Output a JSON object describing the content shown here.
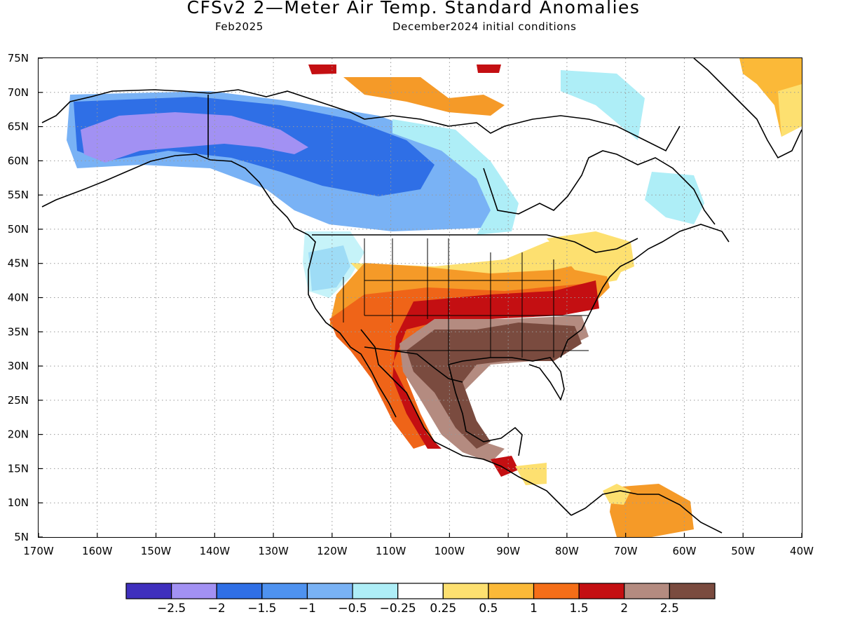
{
  "header": {
    "title": "CFSv2 2—Meter Air Temp. Standard Anomalies",
    "forecast_month": "Feb2025",
    "initial_conditions": "December2024 initial conditions"
  },
  "map": {
    "lon_labels": [
      "170W",
      "160W",
      "150W",
      "140W",
      "130W",
      "120W",
      "110W",
      "100W",
      "90W",
      "80W",
      "70W",
      "60W",
      "50W",
      "40W"
    ],
    "lat_labels": [
      "75N",
      "70N",
      "65N",
      "60N",
      "55N",
      "50N",
      "45N",
      "40N",
      "35N",
      "30N",
      "25N",
      "20N",
      "15N",
      "10N",
      "5N"
    ],
    "grid": "dotted",
    "regions": [
      {
        "name": "alaska-yukon",
        "color": "#a291f3"
      },
      {
        "name": "western-canada",
        "color": "#2f6fe6"
      },
      {
        "name": "central-canada",
        "color": "#79b2f5"
      },
      {
        "name": "hudson-bay",
        "color": "#aeeef7"
      },
      {
        "name": "northern-plains-great-lakes",
        "color": "#fde070"
      },
      {
        "name": "central-us",
        "color": "#f59a28"
      },
      {
        "name": "southwest-us",
        "color": "#ef6418"
      },
      {
        "name": "mid-atlantic-ohio-valley",
        "color": "#c40f12"
      },
      {
        "name": "south-central-us",
        "color": "#b48b80"
      },
      {
        "name": "southeast-us-mexico",
        "color": "#7a4b3f"
      },
      {
        "name": "greenland",
        "color": "#fbb938"
      },
      {
        "name": "northern-south-america",
        "color": "#f59a28"
      }
    ]
  },
  "colorbar": {
    "colors": [
      "#3f2fbd",
      "#a291f3",
      "#2f6fe6",
      "#4e92f0",
      "#79b2f5",
      "#aeeef7",
      "#ffffff",
      "#fde070",
      "#fbb938",
      "#f56e18",
      "#c40f12",
      "#b48b80",
      "#7a4b3f"
    ],
    "labels": [
      "−2.5",
      "−2",
      "−1.5",
      "−1",
      "−0.5",
      "−0.25",
      "0.25",
      "0.5",
      "1",
      "1.5",
      "2",
      "2.5"
    ]
  }
}
